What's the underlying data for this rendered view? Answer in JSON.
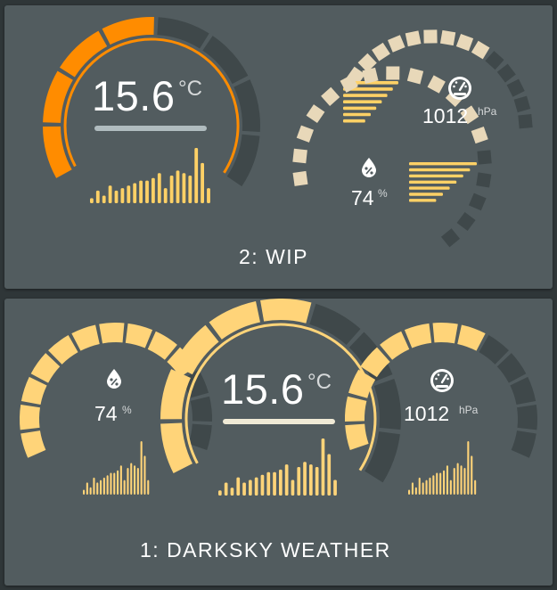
{
  "cards": [
    {
      "title": "2: WIP",
      "temperature": {
        "value": "15.6",
        "unit": "°C"
      },
      "pressure": {
        "value": "1012",
        "unit": "hPa"
      },
      "humidity": {
        "value": "74",
        "unit": "%"
      },
      "colors": {
        "temp": "#ff8c00",
        "humidity": "#e8d8b9",
        "pressure": "#e8d8b9",
        "bars": "#ffd166",
        "track": "#3f484a",
        "comfort_bar": "#b0bcbf"
      }
    },
    {
      "title": "1: DARKSKY WEATHER",
      "temperature": {
        "value": "15.6",
        "unit": "°C"
      },
      "pressure": {
        "value": "1012",
        "unit": "hPa"
      },
      "humidity": {
        "value": "74",
        "unit": "%"
      },
      "colors": {
        "accent": "#ffd479",
        "track": "#3f484a",
        "comfort_bar": "#f0ead6"
      }
    }
  ],
  "icons": [
    "temperature-gauge",
    "gauge-icon",
    "water-percent-icon"
  ],
  "chart_data": [
    {
      "type": "bar",
      "title": "",
      "series": [
        {
          "values": [
            2,
            5,
            3,
            7,
            5,
            6,
            7,
            8,
            9,
            9,
            10,
            12,
            6,
            11,
            13,
            12,
            11,
            22,
            16,
            6
          ]
        }
      ]
    },
    {
      "type": "bar",
      "title": "",
      "series": [
        {
          "values": [
            10,
            9,
            8,
            7,
            6,
            5,
            4
          ]
        }
      ]
    },
    {
      "type": "bar",
      "title": "",
      "series": [
        {
          "values": [
            10,
            9,
            8,
            7,
            6,
            5,
            4
          ]
        }
      ]
    }
  ],
  "gauges": {
    "wip_temp_level": 0.5,
    "wip_pressure_level": 0.62,
    "wip_humidity_level": 0.74,
    "darksky_temp_level": 0.5,
    "darksky_humidity_level": 0.74,
    "darksky_pressure_level": 0.62
  }
}
